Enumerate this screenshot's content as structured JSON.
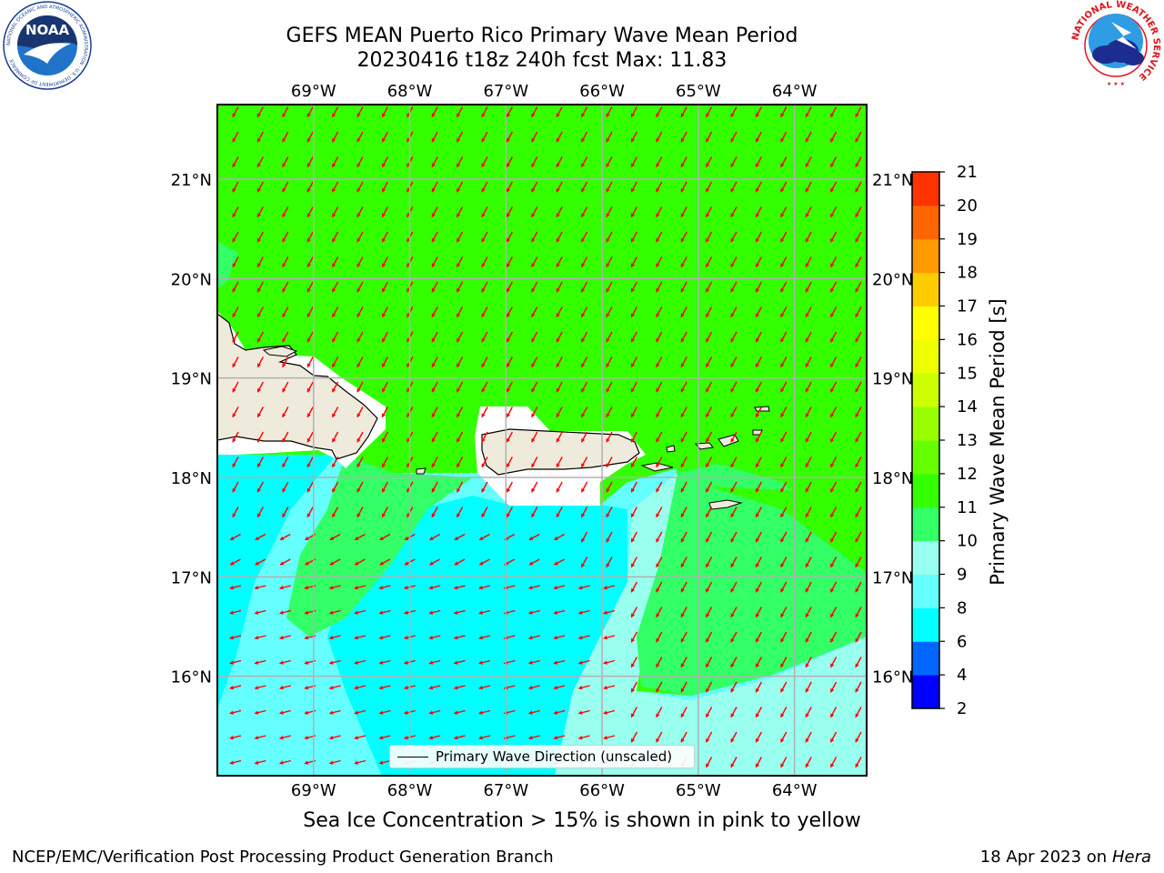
{
  "title_line1": "GEFS MEAN Puerto Rico Primary Wave Mean Period",
  "title_line2": "20230416 t18z 240h fcst   Max: 11.83",
  "map": {
    "lon_ticks": [
      "69°W",
      "68°W",
      "67°W",
      "66°W",
      "65°W",
      "64°W"
    ],
    "lat_ticks": [
      "21°N",
      "20°N",
      "19°N",
      "18°N",
      "17°N",
      "16°N"
    ],
    "lon_values": [
      -69,
      -68,
      -67,
      -66,
      -65,
      -64
    ],
    "lat_values": [
      21,
      20,
      19,
      18,
      17,
      16
    ],
    "lon_range": [
      -70.0,
      -63.25
    ],
    "lat_range": [
      15.0,
      21.75
    ],
    "grid": true,
    "ocean_color_main": "#33ff00",
    "land_color": "#efebdc",
    "arrow_color": "#ff0000"
  },
  "legend": {
    "label": "Primary Wave Direction (unscaled)"
  },
  "colorbar": {
    "label": "Primary Wave Mean Period [s]",
    "ticks": [
      "2",
      "4",
      "6",
      "8",
      "9",
      "10",
      "11",
      "12",
      "13",
      "14",
      "15",
      "16",
      "17",
      "18",
      "19",
      "20",
      "21"
    ],
    "colors": [
      "#0000ff",
      "#0066ff",
      "#00ffff",
      "#66ffff",
      "#99ffee",
      "#33ff66",
      "#33ff00",
      "#66ff00",
      "#99ff00",
      "#ccff00",
      "#eeff00",
      "#ffff00",
      "#ffcc00",
      "#ff9900",
      "#ff6600",
      "#ff3300",
      "#ff0000"
    ]
  },
  "note": "Sea Ice Concentration > 15% is shown in pink to yellow",
  "footer_left": "NCEP/EMC/Verification Post Processing Product Generation Branch",
  "footer_date": "18 Apr 2023 on ",
  "footer_machine": "Hera",
  "logos": {
    "noaa_text": "NOAA",
    "noaa_ring": "NATIONAL OCEANIC AND ATMOSPHERIC ADMINISTRATION · U.S. DEPARTMENT OF COMMERCE",
    "nws_ring": "NATIONAL WEATHER SERVICE"
  }
}
